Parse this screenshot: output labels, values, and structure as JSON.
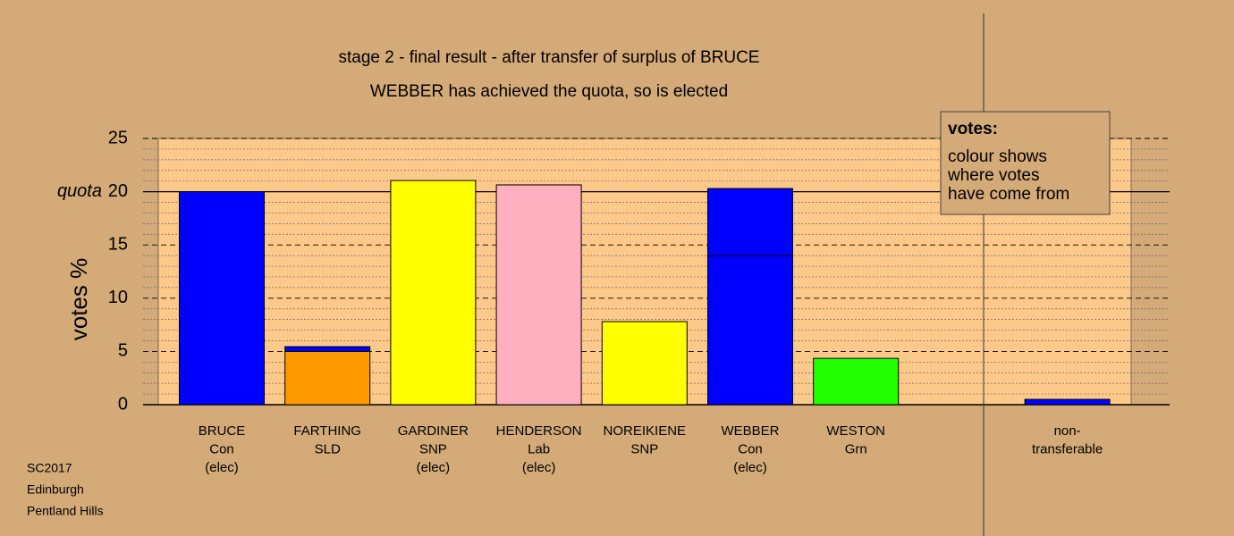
{
  "chart_data": {
    "type": "stacked-bar",
    "title": "stage 2 - final result - after transfer of surplus of BRUCE",
    "subtitle": "WEBBER has achieved the quota, so is elected",
    "ylabel": "votes %",
    "categories": [
      [
        "BRUCE",
        "Con",
        "(elec)"
      ],
      [
        "FARTHING",
        "SLD"
      ],
      [
        "GARDINER",
        "SNP",
        "(elec)"
      ],
      [
        "HENDERSON",
        "Lab",
        "(elec)"
      ],
      [
        "NOREIKIENE",
        "SNP"
      ],
      [
        "WEBBER",
        "Con",
        "(elec)"
      ],
      [
        "WESTON",
        "Grn"
      ],
      null,
      [
        "non-",
        "transferable"
      ]
    ],
    "series": [
      {
        "colors": [
          "#0000ff",
          "#ff9900",
          "#ffff00",
          "#ffb0c0",
          "#ffff00",
          "#0000ff",
          "#22ff00",
          null,
          "#0000ff"
        ],
        "values": [
          20,
          5.0,
          21.05,
          20.64,
          7.8,
          14.0,
          4.35,
          null,
          0.5
        ]
      },
      {
        "color": "#0000ff",
        "values": [
          null,
          0.45,
          null,
          null,
          null,
          6.3,
          null,
          null,
          null
        ]
      }
    ],
    "ylim": [
      0,
      25
    ],
    "yticks": [
      0,
      5,
      10,
      15,
      20,
      25
    ],
    "minor_yticks": [
      1,
      2,
      3,
      4,
      6,
      7,
      8,
      9,
      11,
      12,
      13,
      14,
      16,
      17,
      18,
      19,
      21,
      22,
      23,
      24
    ],
    "quota": 20,
    "quota_label": "quota",
    "legend": {
      "title": "votes:",
      "lines": [
        "colour shows",
        "where votes",
        "have come from"
      ]
    },
    "footnote": [
      "SC2017",
      "Edinburgh",
      "Pentland Hills"
    ]
  }
}
